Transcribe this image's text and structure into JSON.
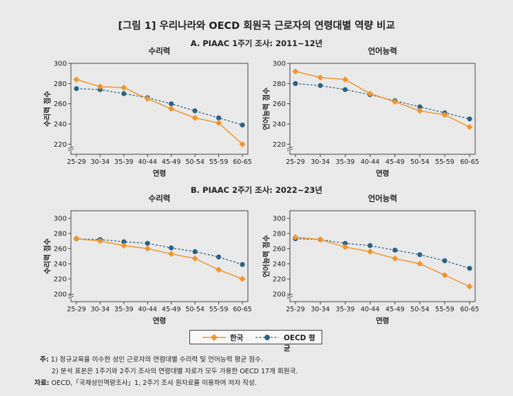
{
  "figure_title": "[그림 1] 우리나라와 OECD 회원국 근로자의 연령대별 역량 비교",
  "colors": {
    "korea": "#f0962e",
    "oecd": "#2f6280",
    "background": "#e9e9e9"
  },
  "legend": {
    "korea": "한국",
    "oecd": "OECD 평균"
  },
  "notes": {
    "note_label": "주:",
    "note1": "1) 정규교육을 이수한 성인 근로자의 연령대별 수리력 및 언어능력 평균 점수.",
    "note2": "2) 분석 표본은 1주기와 2주기 조사의 연령대별 자료가 모두 가용한 OECD 17개 회원국.",
    "source_label": "자료:",
    "source": "OECD,「국제성인역량조사」1, 2주기 조사 원자료를 이용하여 저자 작성."
  },
  "chart_data": [
    {
      "type": "line",
      "panel": "A. PIAAC 1주기 조사: 2011~12년",
      "title": "수리력",
      "xlabel": "연령",
      "ylabel": "수리력 점수",
      "categories": [
        "25-29",
        "30-34",
        "35-39",
        "40-44",
        "45-49",
        "50-54",
        "55-59",
        "60-65"
      ],
      "ylim": [
        210,
        300
      ],
      "yticks": [
        220,
        240,
        260,
        280,
        300
      ],
      "series": [
        {
          "name": "한국",
          "values": [
            284,
            277,
            276,
            265,
            255,
            246,
            241,
            220
          ]
        },
        {
          "name": "OECD 평균",
          "values": [
            275,
            274,
            270,
            266,
            260,
            253,
            246,
            239
          ]
        }
      ]
    },
    {
      "type": "line",
      "panel": "A. PIAAC 1주기 조사: 2011~12년",
      "title": "언어능력",
      "xlabel": "연령",
      "ylabel": "언어능력 점수",
      "categories": [
        "25-29",
        "30-34",
        "35-39",
        "40-44",
        "45-49",
        "50-54",
        "55-59",
        "60-65"
      ],
      "ylim": [
        210,
        300
      ],
      "yticks": [
        220,
        240,
        260,
        280,
        300
      ],
      "series": [
        {
          "name": "한국",
          "values": [
            292,
            286,
            284,
            270,
            262,
            253,
            249,
            237
          ]
        },
        {
          "name": "OECD 평균",
          "values": [
            280,
            278,
            274,
            269,
            263,
            257,
            251,
            245
          ]
        }
      ]
    },
    {
      "type": "line",
      "panel": "B. PIAAC 2주기 조사: 2022~23년",
      "title": "수리력",
      "xlabel": "연령",
      "ylabel": "수리력 점수",
      "categories": [
        "25-29",
        "30-34",
        "35-39",
        "40-44",
        "45-49",
        "50-54",
        "55-59",
        "60-65"
      ],
      "ylim": [
        190,
        310
      ],
      "yticks": [
        200,
        220,
        240,
        260,
        280,
        300
      ],
      "series": [
        {
          "name": "한국",
          "values": [
            273,
            270,
            264,
            260,
            253,
            247,
            232,
            220
          ]
        },
        {
          "name": "OECD 평균",
          "values": [
            273,
            272,
            269,
            267,
            261,
            256,
            249,
            239
          ]
        }
      ]
    },
    {
      "type": "line",
      "panel": "B. PIAAC 2주기 조사: 2022~23년",
      "title": "언어능력",
      "xlabel": "연령",
      "ylabel": "언어능력 점수",
      "categories": [
        "25-29",
        "30-34",
        "35-39",
        "40-44",
        "45-49",
        "50-54",
        "55-59",
        "60-65"
      ],
      "ylim": [
        190,
        310
      ],
      "yticks": [
        200,
        220,
        240,
        260,
        280,
        300
      ],
      "series": [
        {
          "name": "한국",
          "values": [
            275,
            272,
            262,
            256,
            247,
            240,
            225,
            210
          ]
        },
        {
          "name": "OECD 평균",
          "values": [
            273,
            272,
            267,
            264,
            258,
            252,
            244,
            234
          ]
        }
      ]
    }
  ]
}
